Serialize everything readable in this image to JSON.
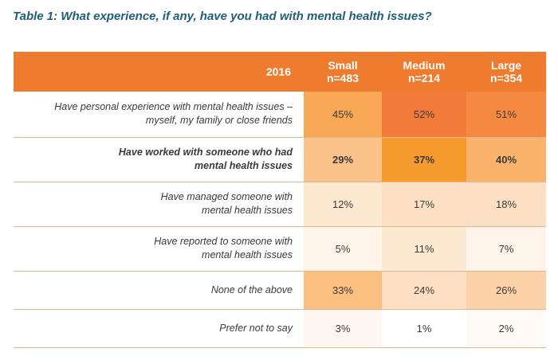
{
  "title": "Table 1: What experience, if any, have you had with mental health issues?",
  "header": {
    "year": "2016",
    "columns": [
      {
        "name": "Small",
        "n": "n=483"
      },
      {
        "name": "Medium",
        "n": "n=214"
      },
      {
        "name": "Large",
        "n": "n=354"
      }
    ]
  },
  "rows": [
    {
      "label_lines": [
        "Have personal experience with mental health issues –",
        "myself, my family or close friends"
      ],
      "values": [
        "45%",
        "52%",
        "51%"
      ],
      "colors": [
        "#f9a855",
        "#f37b3a",
        "#f58942"
      ]
    },
    {
      "label_lines": [
        "Have worked with someone who had",
        "mental health issues"
      ],
      "values": [
        "29%",
        "37%",
        "40%"
      ],
      "colors": [
        "#fbc289",
        "#f79a2e",
        "#fbb36b"
      ]
    },
    {
      "label_lines": [
        "Have managed someone with",
        "mental health issues"
      ],
      "values": [
        "12%",
        "17%",
        "18%"
      ],
      "colors": [
        "#fde8d2",
        "#fde0c4",
        "#fde0c4"
      ]
    },
    {
      "label_lines": [
        "Have reported to someone with",
        "mental health issues"
      ],
      "values": [
        "5%",
        "11%",
        "7%"
      ],
      "colors": [
        "#fff4ea",
        "#fde8d2",
        "#fff4ea"
      ]
    },
    {
      "label_lines": [
        "None of the above"
      ],
      "values": [
        "33%",
        "24%",
        "26%"
      ],
      "colors": [
        "#fbbf80",
        "#fde0c4",
        "#fcd3a8"
      ]
    },
    {
      "label_lines": [
        "Prefer not to say"
      ],
      "values": [
        "3%",
        "1%",
        "2%"
      ],
      "colors": [
        "#fff7f0",
        "#ffffff",
        "#fffaf5"
      ]
    }
  ],
  "colors": {
    "header_bg": "#ee7b2e",
    "title": "#1e5f7a",
    "row_border": "#d9b891"
  }
}
